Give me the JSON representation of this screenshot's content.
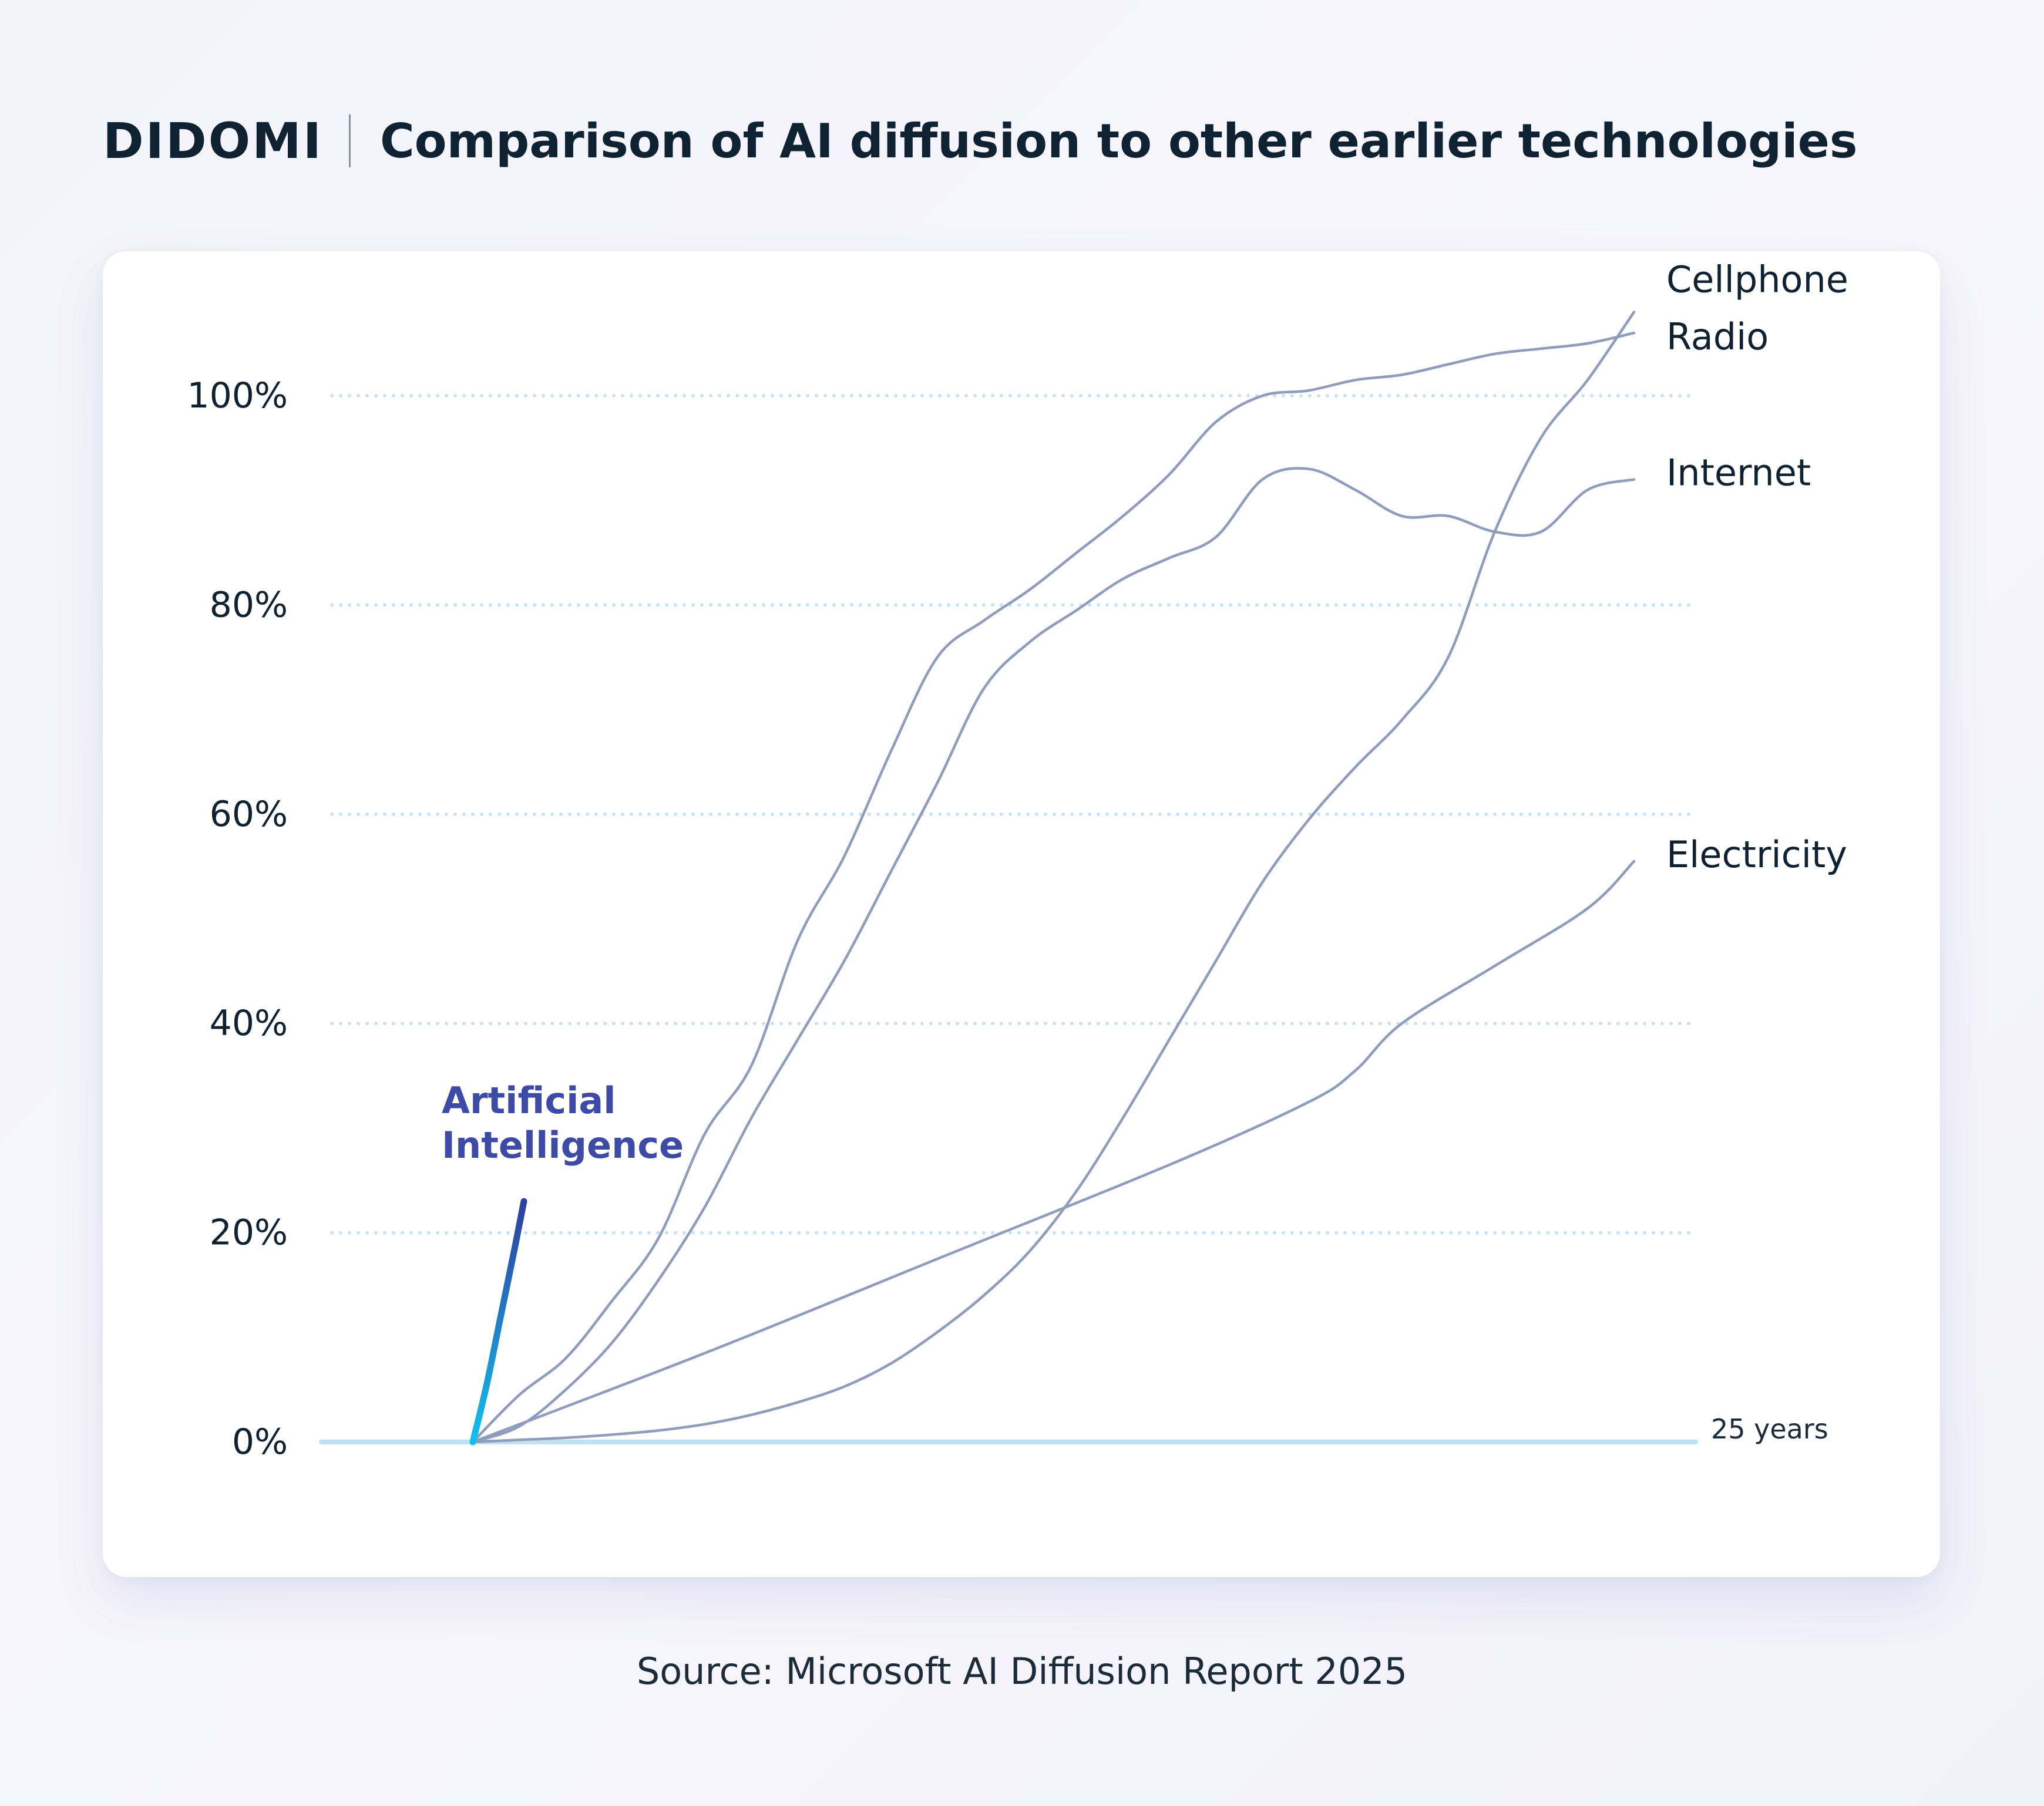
{
  "header": {
    "logo": "DIDOMI",
    "title": "Comparison of AI diffusion to other earlier technologies"
  },
  "source": "Source: Microsoft AI Diffusion Report 2025",
  "colors": {
    "grid": "#c7e2f6",
    "baseline": "#c2e0f5",
    "series": "#8f9cbb",
    "ai_start": "#11c0ee",
    "ai_end": "#2e3f9e",
    "ai_label": "#3d4aa6"
  },
  "chart_data": {
    "type": "line",
    "title": "Comparison of AI diffusion to other earlier technologies",
    "xlabel": "",
    "ylabel": "",
    "x_unit": "years",
    "xlim": [
      0,
      25
    ],
    "ylim": [
      0,
      100
    ],
    "y_ticks": [
      "0%",
      "20%",
      "40%",
      "60%",
      "80%",
      "100%"
    ],
    "x_end_label": "25 years",
    "grid": true,
    "series": [
      {
        "name": "Cellphone",
        "x": [
          0,
          1,
          2,
          3,
          4,
          5,
          6,
          7,
          8,
          9,
          10,
          11,
          12,
          13,
          14,
          15,
          16,
          17,
          18,
          19,
          20,
          21,
          22,
          23,
          24,
          25
        ],
        "y": [
          0,
          0.2,
          0.4,
          0.7,
          1.1,
          1.7,
          2.6,
          3.8,
          5.3,
          7.5,
          10.5,
          14.0,
          18.3,
          24,
          31,
          38.5,
          46,
          53.5,
          59.5,
          64.5,
          69,
          75,
          87,
          96,
          101.5,
          108
        ]
      },
      {
        "name": "Radio",
        "x": [
          0,
          1,
          2,
          3,
          4,
          5,
          6,
          7,
          8,
          9,
          10,
          11,
          12,
          13,
          14,
          15,
          16,
          17,
          18,
          19,
          20,
          21,
          22,
          23,
          24,
          25
        ],
        "y": [
          0,
          4.5,
          8,
          13.5,
          19.5,
          29.5,
          36,
          48,
          56,
          66,
          75,
          78.5,
          81.5,
          85,
          88.5,
          92.5,
          97.5,
          100,
          100.5,
          101.5,
          102,
          103,
          104,
          104.5,
          105,
          106
        ]
      },
      {
        "name": "Internet",
        "x": [
          0,
          1,
          2,
          3,
          4,
          5,
          6,
          7,
          8,
          9,
          10,
          11,
          12,
          13,
          14,
          15,
          16,
          17,
          18,
          19,
          20,
          21,
          22,
          23,
          24,
          25
        ],
        "y": [
          0,
          1.5,
          5,
          9.5,
          15.5,
          22.5,
          31,
          38.5,
          46,
          54.5,
          63,
          72,
          76.5,
          79.5,
          82.5,
          84.5,
          86.5,
          92,
          93,
          91,
          88.5,
          88.5,
          87,
          87,
          91,
          92
        ]
      },
      {
        "name": "Electricity",
        "x": [
          0,
          5,
          10,
          15,
          18,
          19,
          20,
          22,
          24,
          25
        ],
        "y": [
          0,
          8.5,
          17.5,
          26.5,
          32.5,
          35.5,
          40,
          45.5,
          51,
          55.5
        ]
      }
    ],
    "annotation": {
      "name": "Artificial Intelligence",
      "lines": [
        "Artificial",
        "Intelligence"
      ],
      "x": [
        0,
        0.3,
        0.6,
        0.9,
        1.1
      ],
      "y": [
        0,
        5.5,
        12,
        18.5,
        23
      ]
    }
  }
}
